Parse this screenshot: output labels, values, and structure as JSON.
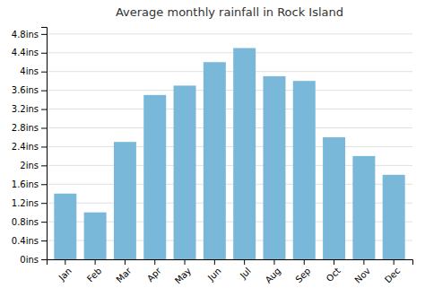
{
  "chart_data": {
    "type": "bar",
    "title": "Average monthly rainfall in Rock Island",
    "categories": [
      "Jan",
      "Feb",
      "Mar",
      "Apr",
      "May",
      "Jun",
      "Jul",
      "Aug",
      "Sep",
      "Oct",
      "Nov",
      "Dec"
    ],
    "values": [
      1.4,
      1.0,
      2.5,
      3.5,
      3.7,
      4.2,
      4.5,
      3.9,
      3.8,
      2.6,
      2.2,
      1.8
    ],
    "color": "#7ab8d9",
    "ylim": [
      0,
      4.95
    ],
    "yticks": [
      {
        "value": 0,
        "label": "0ins"
      },
      {
        "value": 0.4,
        "label": "0.4ins"
      },
      {
        "value": 0.8,
        "label": "0.8ins"
      },
      {
        "value": 1.2,
        "label": "1.2ins"
      },
      {
        "value": 1.6,
        "label": "1.6ins"
      },
      {
        "value": 2.0,
        "label": "2ins"
      },
      {
        "value": 2.4,
        "label": "2.4ins"
      },
      {
        "value": 2.8,
        "label": "2.8ins"
      },
      {
        "value": 3.2,
        "label": "3.2ins"
      },
      {
        "value": 3.6,
        "label": "3.6ins"
      },
      {
        "value": 4.0,
        "label": "4ins"
      },
      {
        "value": 4.4,
        "label": "4.4ins"
      },
      {
        "value": 4.8,
        "label": "4.8ins"
      }
    ],
    "grid": true
  }
}
